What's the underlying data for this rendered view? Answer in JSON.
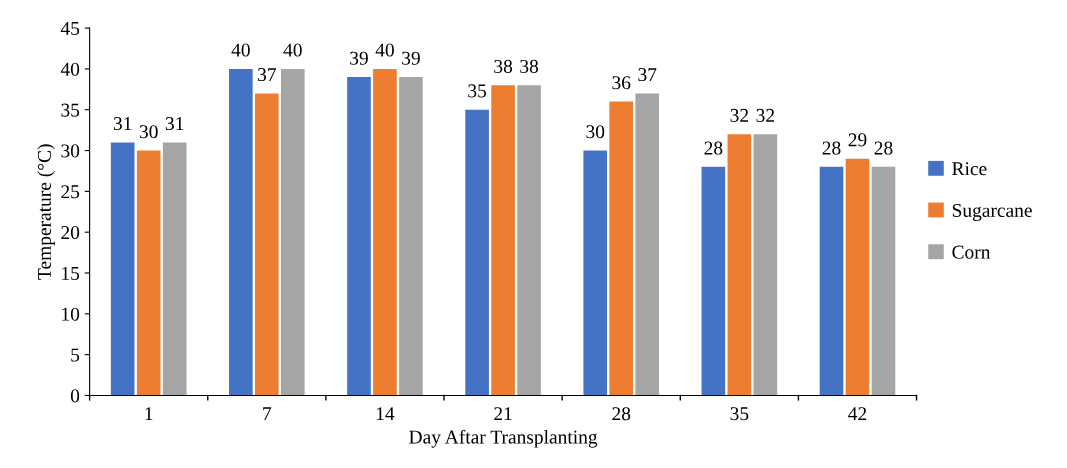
{
  "chart_data": {
    "type": "bar",
    "xlabel": "Day Aftar Transplanting",
    "ylabel": "Temperature (°C)",
    "categories": [
      "1",
      "7",
      "14",
      "21",
      "28",
      "35",
      "42"
    ],
    "series": [
      {
        "name": "Rice",
        "color": "#4472c4",
        "values": [
          31,
          40,
          39,
          35,
          30,
          28,
          28
        ]
      },
      {
        "name": "Sugarcane",
        "color": "#ed7d31",
        "values": [
          30,
          37,
          40,
          38,
          36,
          32,
          29
        ]
      },
      {
        "name": "Corn",
        "color": "#a5a5a5",
        "values": [
          31,
          40,
          39,
          38,
          37,
          32,
          28
        ]
      }
    ],
    "ylim": [
      0,
      45
    ],
    "yticks": [
      0,
      5,
      10,
      15,
      20,
      25,
      30,
      35,
      40,
      45
    ],
    "grid": false,
    "legend": "right",
    "data_labels": true
  }
}
